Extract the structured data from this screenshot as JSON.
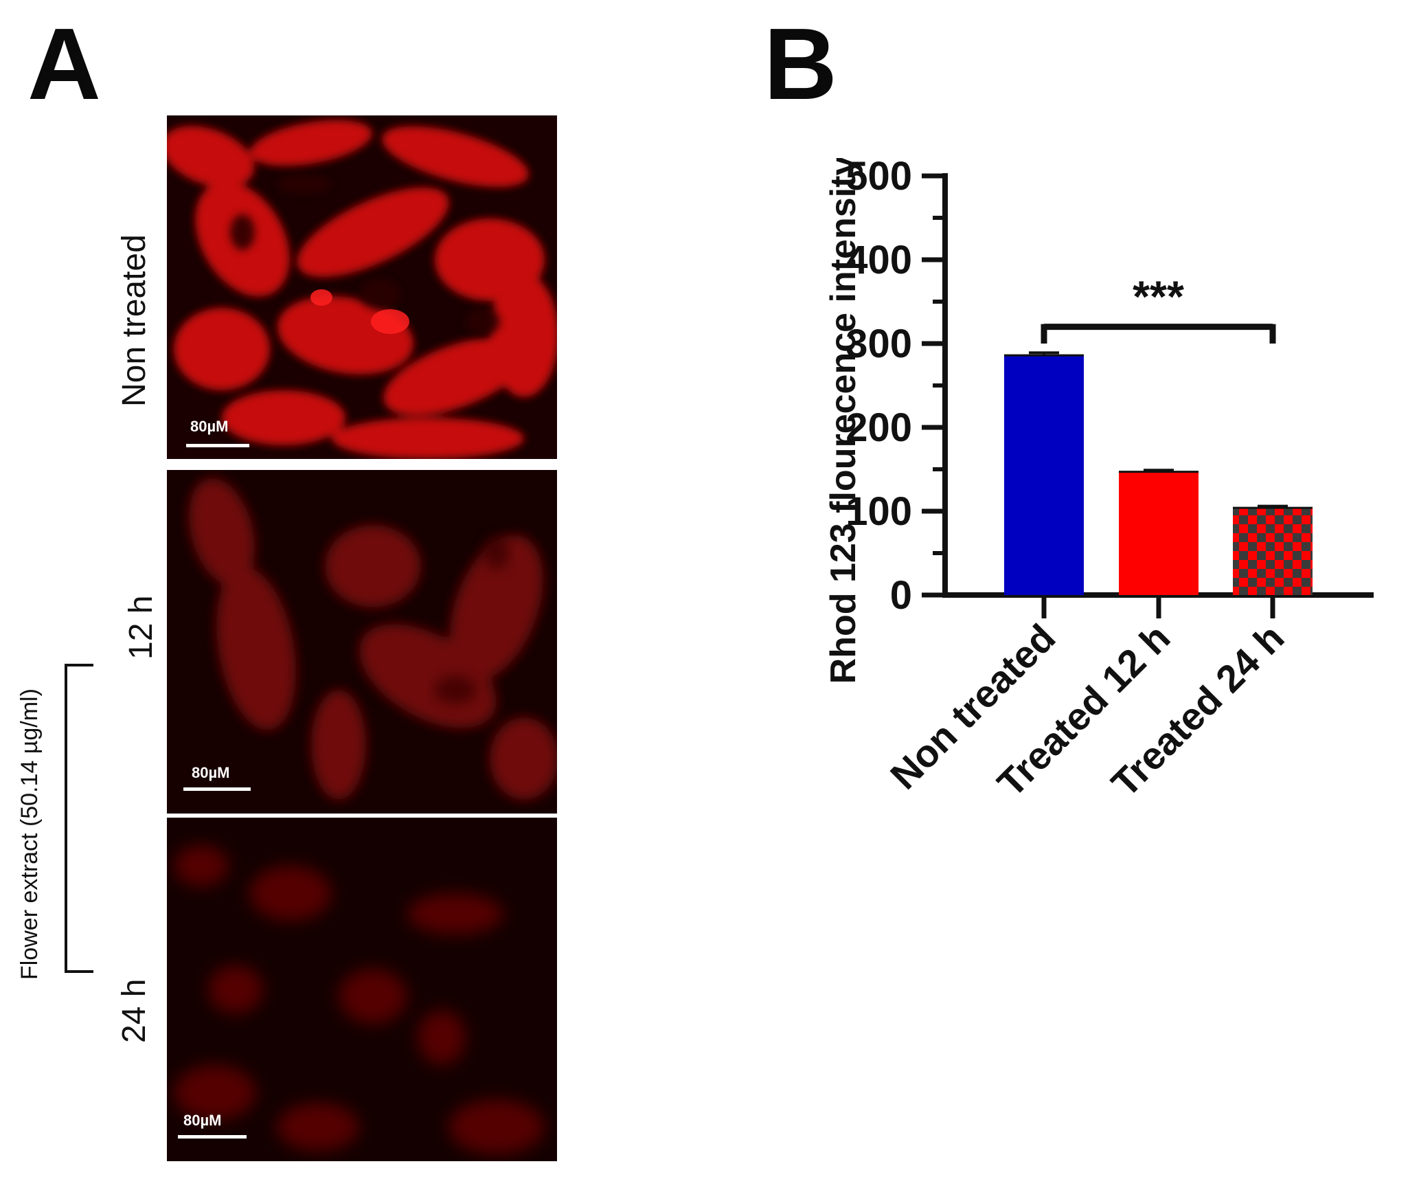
{
  "panels": {
    "a_letter": "A",
    "b_letter": "B"
  },
  "micrographs": {
    "non_treated_label": "Non treated",
    "h12_label": "12 h",
    "h24_label": "24 h",
    "group_label": "Flower extract (50.14 µg/ml)",
    "scale_bar_label": "80µM",
    "stain_color": "#d01010"
  },
  "chart_data": {
    "type": "bar",
    "categories": [
      "Non treated",
      "Treated 12 h",
      "Treated 24 h"
    ],
    "values": [
      286,
      147,
      104
    ],
    "errors": [
      3,
      2,
      2
    ],
    "bar_colors": [
      "#0000c0",
      "#ff0000",
      "#ff0000"
    ],
    "bar_patterns": [
      "solid",
      "solid",
      "checkered"
    ],
    "ylabel": "Rhod 123 flourecence intensity",
    "xlabel": "",
    "ylim": [
      0,
      500
    ],
    "yticks": [
      0,
      100,
      200,
      300,
      400,
      500
    ],
    "significance": {
      "from": 0,
      "to": 2,
      "label": "***"
    },
    "grid": false
  }
}
